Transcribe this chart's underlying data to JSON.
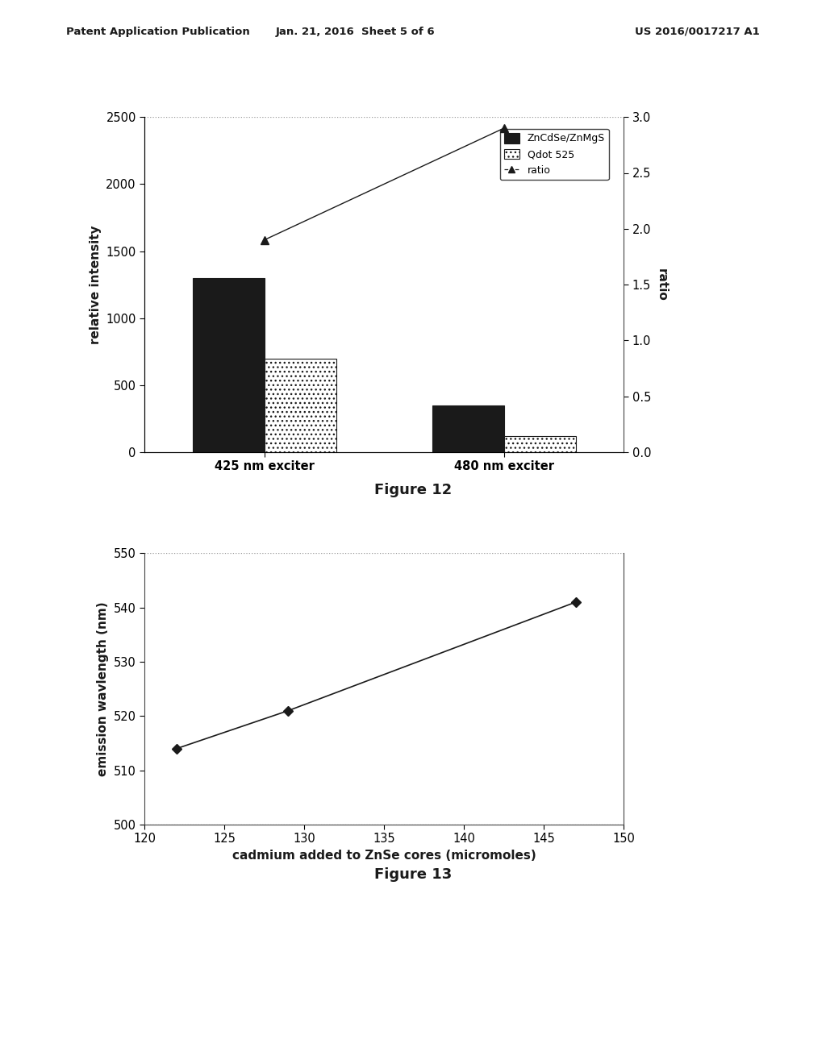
{
  "fig12": {
    "categories": [
      "425 nm exciter",
      "480 nm exciter"
    ],
    "zncdse_values": [
      1300,
      350
    ],
    "qdot_values": [
      700,
      120
    ],
    "ratio_values": [
      1.9,
      2.9
    ],
    "left_ylim": [
      0,
      2500
    ],
    "right_ylim": [
      0.0,
      3.0
    ],
    "left_yticks": [
      0,
      500,
      1000,
      1500,
      2000,
      2500
    ],
    "right_yticks": [
      0.0,
      0.5,
      1.0,
      1.5,
      2.0,
      2.5,
      3.0
    ],
    "ylabel_left": "relative intensity",
    "ylabel_right": "ratio",
    "legend_labels": [
      "ZnCdSe/ZnMgS",
      "Qdot 525",
      "ratio"
    ],
    "bar_width": 0.3,
    "zncdse_color": "#1a1a1a",
    "qdot_color": "#bbbbbb",
    "grid_color": "#999999",
    "title": "Figure 12"
  },
  "fig13": {
    "x_data": [
      122,
      129,
      147
    ],
    "y_data": [
      514,
      521,
      541
    ],
    "xlim": [
      120,
      150
    ],
    "ylim": [
      500,
      550
    ],
    "xticks": [
      120,
      125,
      130,
      135,
      140,
      145,
      150
    ],
    "yticks": [
      500,
      510,
      520,
      530,
      540,
      550
    ],
    "xlabel": "cadmium added to ZnSe cores (micromoles)",
    "ylabel": "emission wavlength (nm)",
    "grid_color": "#999999",
    "line_color": "#1a1a1a",
    "marker": "D",
    "title": "Figure 13"
  },
  "header_left": "Patent Application Publication",
  "header_center": "Jan. 21, 2016  Sheet 5 of 6",
  "header_right": "US 2016/0017217 A1",
  "background_color": "#ffffff",
  "text_color": "#1a1a1a"
}
